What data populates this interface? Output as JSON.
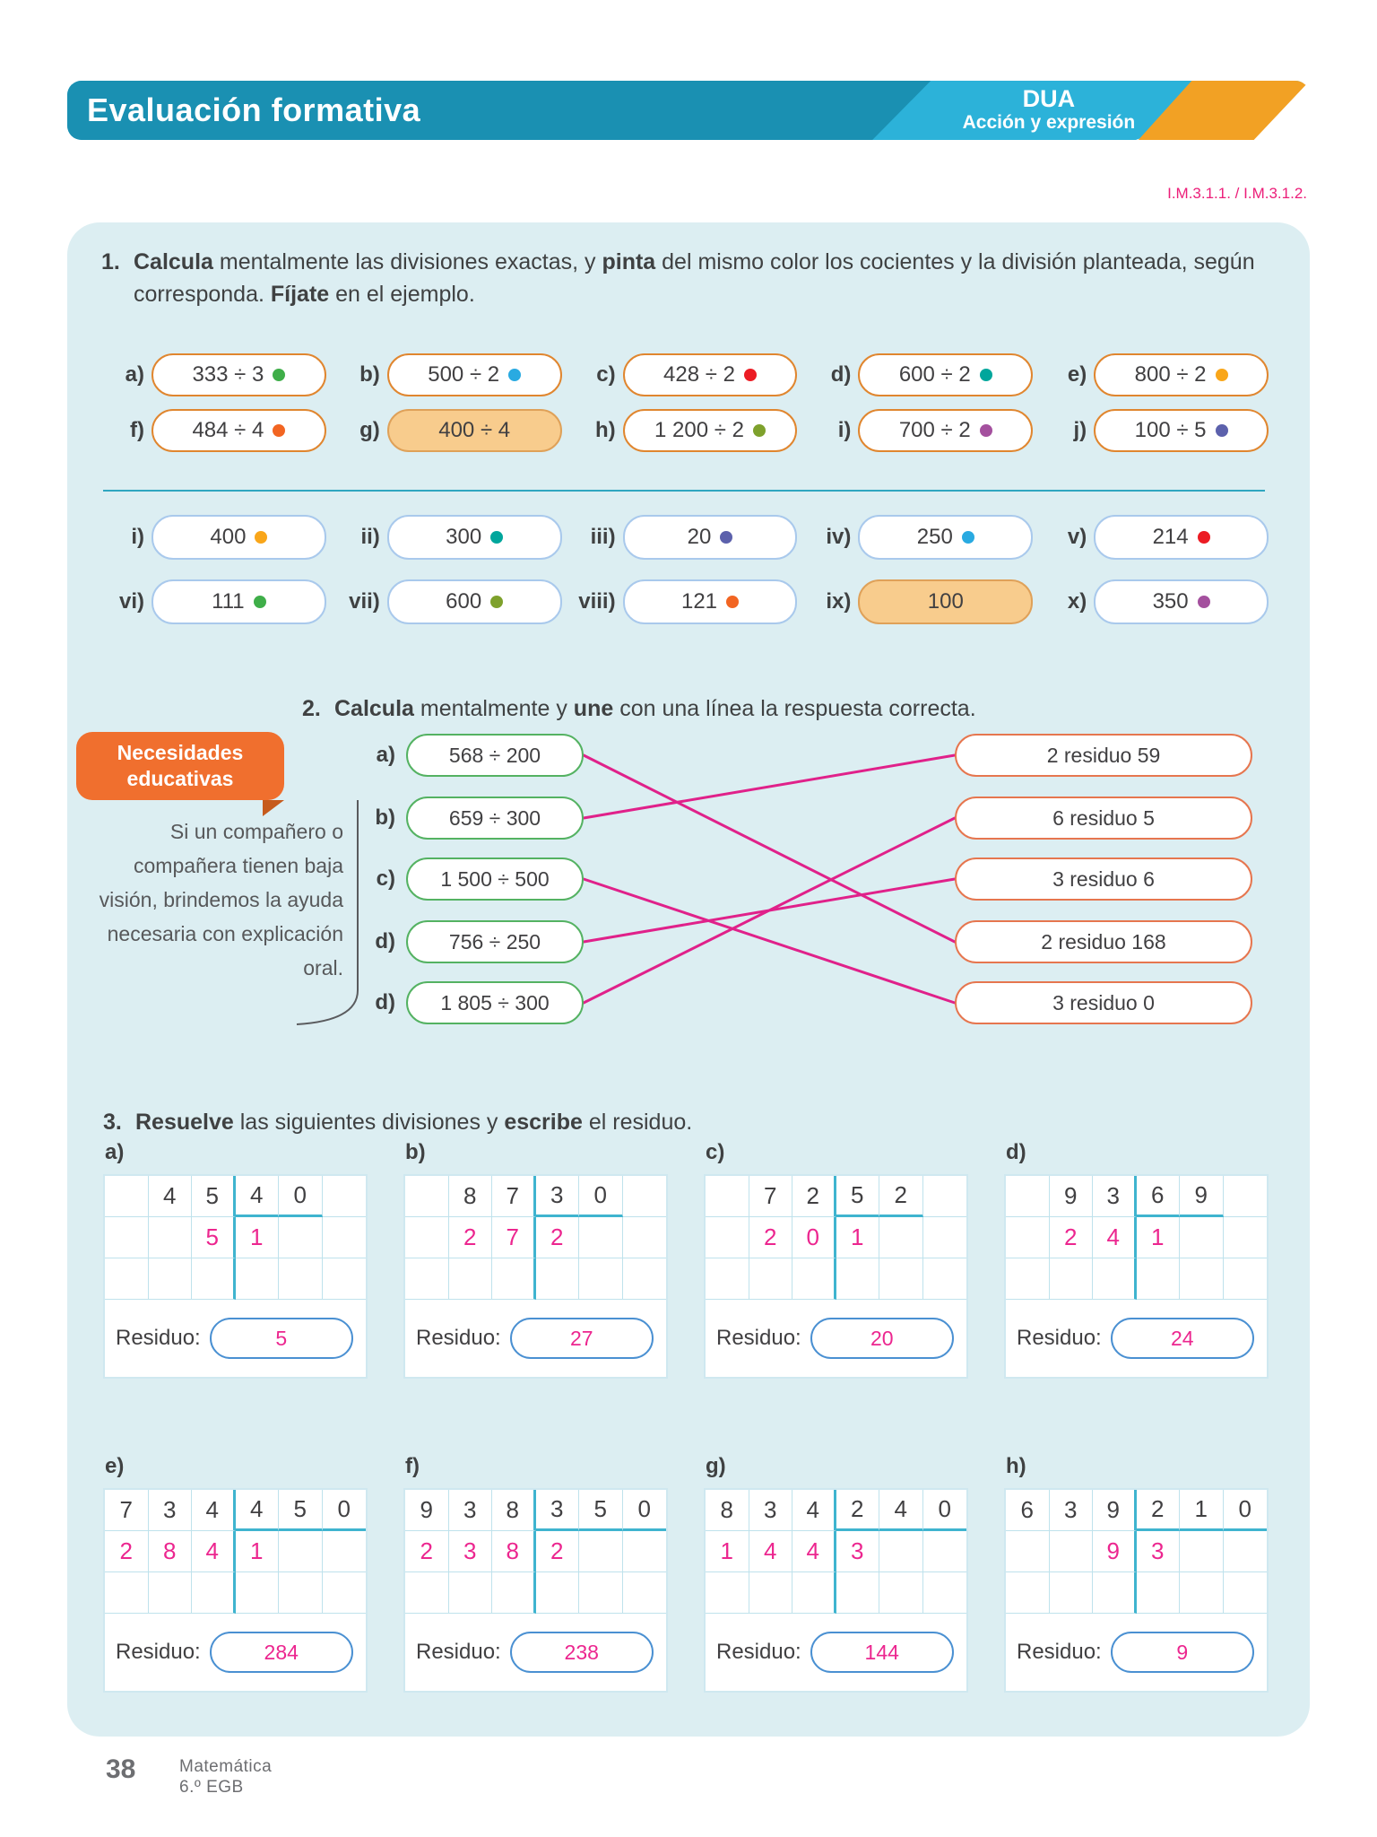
{
  "header": {
    "title": "Evaluación formativa",
    "dua": "DUA",
    "dua_sub": "Acción y expresión",
    "codes": "I.M.3.1.1. / I.M.3.1.2."
  },
  "exercise1": {
    "number": "1.",
    "instruction_parts": [
      {
        "t": "Calcula",
        "b": 1
      },
      {
        "t": " mentalmente las divisiones exactas, y "
      },
      {
        "t": "pinta",
        "b": 1
      },
      {
        "t": " del mismo color los cocientes y la división planteada, según corresponda. "
      },
      {
        "t": "Fíjate",
        "b": 1
      },
      {
        "t": " en el ejemplo."
      }
    ],
    "problems": [
      {
        "label": "a)",
        "text": "333 ÷ 3",
        "dot": "#3fae49"
      },
      {
        "label": "b)",
        "text": "500 ÷ 2",
        "dot": "#29aae1"
      },
      {
        "label": "c)",
        "text": "428 ÷ 2",
        "dot": "#ec1c24"
      },
      {
        "label": "d)",
        "text": "600 ÷ 2",
        "dot": "#00a69c"
      },
      {
        "label": "e)",
        "text": "800 ÷ 2",
        "dot": "#f9a61a"
      },
      {
        "label": "f)",
        "text": "484 ÷ 4",
        "dot": "#f26522"
      },
      {
        "label": "g)",
        "text": "400 ÷ 4",
        "filled": "#f8cc8d"
      },
      {
        "label": "h)",
        "text": "1 200 ÷ 2",
        "dot": "#7ea12c"
      },
      {
        "label": "i)",
        "text": "700 ÷ 2",
        "dot": "#a4509e"
      },
      {
        "label": "j)",
        "text": "100 ÷ 5",
        "dot": "#5c61ac"
      }
    ],
    "answers": [
      {
        "label": "i)",
        "text": "400",
        "dot": "#f9a61a"
      },
      {
        "label": "ii)",
        "text": "300",
        "dot": "#00a69c"
      },
      {
        "label": "iii)",
        "text": "20",
        "dot": "#5c61ac"
      },
      {
        "label": "iv)",
        "text": "250",
        "dot": "#29aae1"
      },
      {
        "label": "v)",
        "text": "214",
        "dot": "#ec1c24"
      },
      {
        "label": "vi)",
        "text": "111",
        "dot": "#3fae49"
      },
      {
        "label": "vii)",
        "text": "600",
        "dot": "#7ea12c"
      },
      {
        "label": "viii)",
        "text": "121",
        "dot": "#f26522"
      },
      {
        "label": "ix)",
        "text": "100",
        "filled": "#f8cc8d"
      },
      {
        "label": "x)",
        "text": "350",
        "dot": "#a4509e"
      }
    ]
  },
  "exercise2": {
    "number": "2.",
    "instruction_parts": [
      {
        "t": "Calcula",
        "b": 1
      },
      {
        "t": " mentalmente y "
      },
      {
        "t": "une",
        "b": 1
      },
      {
        "t": " con una línea la respuesta correcta."
      }
    ],
    "sidebar": {
      "title_line1": "Necesidades",
      "title_line2": "educativas",
      "body": "Si un compañero o compañera tienen baja visión, brindemos la ayuda necesaria con explicación oral."
    },
    "left": [
      {
        "label": "a)",
        "text": "568 ÷ 200"
      },
      {
        "label": "b)",
        "text": "659 ÷ 300"
      },
      {
        "label": "c)",
        "text": "1 500 ÷ 500"
      },
      {
        "label": "d)",
        "text": "756 ÷ 250"
      },
      {
        "label": "d)",
        "text": "1 805 ÷ 300"
      }
    ],
    "right": [
      "2 residuo 59",
      "6 residuo 5",
      "3 residuo 6",
      "2 residuo 168",
      "3 residuo 0"
    ],
    "connections": [
      [
        0,
        3
      ],
      [
        1,
        0
      ],
      [
        2,
        4
      ],
      [
        3,
        2
      ],
      [
        4,
        1
      ]
    ],
    "line_color": "#e0218a"
  },
  "exercise3": {
    "number": "3.",
    "instruction_parts": [
      {
        "t": "Resuelve",
        "b": 1
      },
      {
        "t": " las siguientes divisiones y "
      },
      {
        "t": "escribe",
        "b": 1
      },
      {
        "t": " el residuo."
      }
    ],
    "residuo_label": "Residuo:",
    "grids": [
      {
        "label": "a)",
        "row1": [
          "",
          "4",
          "5",
          "4",
          "0",
          ""
        ],
        "row2": [
          "",
          "",
          "5",
          "1",
          "",
          ""
        ],
        "underline": [
          3,
          4
        ],
        "residuo": "5"
      },
      {
        "label": "b)",
        "row1": [
          "",
          "8",
          "7",
          "3",
          "0",
          ""
        ],
        "row2": [
          "",
          "2",
          "7",
          "2",
          "",
          ""
        ],
        "underline": [
          3,
          4
        ],
        "residuo": "27"
      },
      {
        "label": "c)",
        "row1": [
          "",
          "7",
          "2",
          "5",
          "2",
          ""
        ],
        "row2": [
          "",
          "2",
          "0",
          "1",
          "",
          ""
        ],
        "underline": [
          3,
          4
        ],
        "residuo": "20"
      },
      {
        "label": "d)",
        "row1": [
          "",
          "9",
          "3",
          "6",
          "9",
          ""
        ],
        "row2": [
          "",
          "2",
          "4",
          "1",
          "",
          ""
        ],
        "underline": [
          3,
          4
        ],
        "residuo": "24"
      },
      {
        "label": "e)",
        "row1": [
          "7",
          "3",
          "4",
          "4",
          "5",
          "0"
        ],
        "row2": [
          "2",
          "8",
          "4",
          "1",
          "",
          ""
        ],
        "underline": [
          3,
          4,
          5
        ],
        "residuo": "284"
      },
      {
        "label": "f)",
        "row1": [
          "9",
          "3",
          "8",
          "3",
          "5",
          "0"
        ],
        "row2": [
          "2",
          "3",
          "8",
          "2",
          "",
          ""
        ],
        "underline": [
          3,
          4,
          5
        ],
        "residuo": "238"
      },
      {
        "label": "g)",
        "row1": [
          "8",
          "3",
          "4",
          "2",
          "4",
          "0"
        ],
        "row2": [
          "1",
          "4",
          "4",
          "3",
          "",
          ""
        ],
        "underline": [
          3,
          4,
          5
        ],
        "residuo": "144"
      },
      {
        "label": "h)",
        "row1": [
          "6",
          "3",
          "9",
          "2",
          "1",
          "0"
        ],
        "row2": [
          "",
          "",
          "9",
          "3",
          "",
          ""
        ],
        "underline": [
          3,
          4,
          5
        ],
        "residuo": "9"
      }
    ]
  },
  "footer": {
    "page": "38",
    "subject": "Matemática",
    "grade": "6.º EGB"
  }
}
